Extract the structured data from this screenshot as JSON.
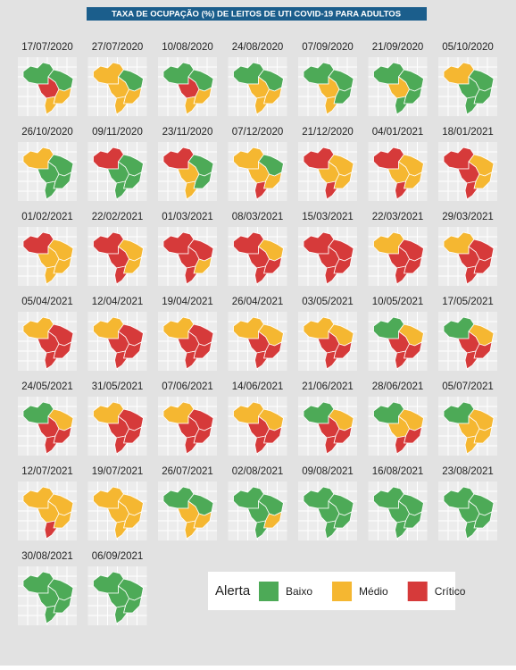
{
  "header": {
    "title": "TAXA DE OCUPAÇÃO (%) DE LEITOS DE UTI COVID-19 PARA ADULTOS"
  },
  "legend": {
    "title": "Alerta",
    "items": [
      {
        "label": "Baixo",
        "color": "#4daa57"
      },
      {
        "label": "Médio",
        "color": "#f5b731"
      },
      {
        "label": "Crítico",
        "color": "#d63a3a"
      }
    ]
  },
  "maps": [
    {
      "date": "17/07/2020",
      "colors": [
        "#4daa57",
        "#4daa57",
        "#d63a3a",
        "#f5b731",
        "#f5b731"
      ]
    },
    {
      "date": "27/07/2020",
      "colors": [
        "#f5b731",
        "#4daa57",
        "#f5b731",
        "#f5b731",
        "#f5b731"
      ]
    },
    {
      "date": "10/08/2020",
      "colors": [
        "#4daa57",
        "#4daa57",
        "#d63a3a",
        "#f5b731",
        "#f5b731"
      ]
    },
    {
      "date": "24/08/2020",
      "colors": [
        "#4daa57",
        "#4daa57",
        "#f5b731",
        "#f5b731",
        "#f5b731"
      ]
    },
    {
      "date": "07/09/2020",
      "colors": [
        "#4daa57",
        "#4daa57",
        "#f5b731",
        "#4daa57",
        "#f5b731"
      ]
    },
    {
      "date": "21/09/2020",
      "colors": [
        "#4daa57",
        "#4daa57",
        "#f5b731",
        "#4daa57",
        "#4daa57"
      ]
    },
    {
      "date": "05/10/2020",
      "colors": [
        "#f5b731",
        "#4daa57",
        "#4daa57",
        "#4daa57",
        "#4daa57"
      ]
    },
    {
      "date": "26/10/2020",
      "colors": [
        "#f5b731",
        "#4daa57",
        "#4daa57",
        "#4daa57",
        "#4daa57"
      ]
    },
    {
      "date": "09/11/2020",
      "colors": [
        "#d63a3a",
        "#4daa57",
        "#4daa57",
        "#4daa57",
        "#4daa57"
      ]
    },
    {
      "date": "23/11/2020",
      "colors": [
        "#d63a3a",
        "#4daa57",
        "#f5b731",
        "#4daa57",
        "#f5b731"
      ]
    },
    {
      "date": "07/12/2020",
      "colors": [
        "#f5b731",
        "#4daa57",
        "#f5b731",
        "#f5b731",
        "#d63a3a"
      ]
    },
    {
      "date": "21/12/2020",
      "colors": [
        "#d63a3a",
        "#f5b731",
        "#f5b731",
        "#f5b731",
        "#d63a3a"
      ]
    },
    {
      "date": "04/01/2021",
      "colors": [
        "#d63a3a",
        "#f5b731",
        "#f5b731",
        "#f5b731",
        "#d63a3a"
      ]
    },
    {
      "date": "18/01/2021",
      "colors": [
        "#d63a3a",
        "#f5b731",
        "#d63a3a",
        "#f5b731",
        "#d63a3a"
      ]
    },
    {
      "date": "01/02/2021",
      "colors": [
        "#d63a3a",
        "#f5b731",
        "#f5b731",
        "#f5b731",
        "#f5b731"
      ]
    },
    {
      "date": "22/02/2021",
      "colors": [
        "#d63a3a",
        "#f5b731",
        "#d63a3a",
        "#f5b731",
        "#d63a3a"
      ]
    },
    {
      "date": "01/03/2021",
      "colors": [
        "#d63a3a",
        "#d63a3a",
        "#d63a3a",
        "#f5b731",
        "#d63a3a"
      ]
    },
    {
      "date": "08/03/2021",
      "colors": [
        "#d63a3a",
        "#f5b731",
        "#d63a3a",
        "#d63a3a",
        "#d63a3a"
      ]
    },
    {
      "date": "15/03/2021",
      "colors": [
        "#d63a3a",
        "#d63a3a",
        "#d63a3a",
        "#d63a3a",
        "#d63a3a"
      ]
    },
    {
      "date": "22/03/2021",
      "colors": [
        "#f5b731",
        "#d63a3a",
        "#d63a3a",
        "#d63a3a",
        "#d63a3a"
      ]
    },
    {
      "date": "29/03/2021",
      "colors": [
        "#f5b731",
        "#d63a3a",
        "#d63a3a",
        "#d63a3a",
        "#d63a3a"
      ]
    },
    {
      "date": "05/04/2021",
      "colors": [
        "#f5b731",
        "#d63a3a",
        "#d63a3a",
        "#d63a3a",
        "#d63a3a"
      ]
    },
    {
      "date": "12/04/2021",
      "colors": [
        "#f5b731",
        "#d63a3a",
        "#d63a3a",
        "#d63a3a",
        "#d63a3a"
      ]
    },
    {
      "date": "19/04/2021",
      "colors": [
        "#f5b731",
        "#d63a3a",
        "#d63a3a",
        "#d63a3a",
        "#d63a3a"
      ]
    },
    {
      "date": "26/04/2021",
      "colors": [
        "#f5b731",
        "#f5b731",
        "#d63a3a",
        "#d63a3a",
        "#d63a3a"
      ]
    },
    {
      "date": "03/05/2021",
      "colors": [
        "#f5b731",
        "#f5b731",
        "#d63a3a",
        "#d63a3a",
        "#d63a3a"
      ]
    },
    {
      "date": "10/05/2021",
      "colors": [
        "#4daa57",
        "#f5b731",
        "#d63a3a",
        "#d63a3a",
        "#d63a3a"
      ]
    },
    {
      "date": "17/05/2021",
      "colors": [
        "#4daa57",
        "#f5b731",
        "#d63a3a",
        "#d63a3a",
        "#d63a3a"
      ]
    },
    {
      "date": "24/05/2021",
      "colors": [
        "#4daa57",
        "#f5b731",
        "#d63a3a",
        "#d63a3a",
        "#d63a3a"
      ]
    },
    {
      "date": "31/05/2021",
      "colors": [
        "#f5b731",
        "#d63a3a",
        "#d63a3a",
        "#d63a3a",
        "#d63a3a"
      ]
    },
    {
      "date": "07/06/2021",
      "colors": [
        "#f5b731",
        "#d63a3a",
        "#d63a3a",
        "#d63a3a",
        "#d63a3a"
      ]
    },
    {
      "date": "14/06/2021",
      "colors": [
        "#f5b731",
        "#f5b731",
        "#d63a3a",
        "#d63a3a",
        "#d63a3a"
      ]
    },
    {
      "date": "21/06/2021",
      "colors": [
        "#4daa57",
        "#f5b731",
        "#d63a3a",
        "#d63a3a",
        "#d63a3a"
      ]
    },
    {
      "date": "28/06/2021",
      "colors": [
        "#4daa57",
        "#f5b731",
        "#f5b731",
        "#d63a3a",
        "#d63a3a"
      ]
    },
    {
      "date": "05/07/2021",
      "colors": [
        "#4daa57",
        "#f5b731",
        "#f5b731",
        "#f5b731",
        "#f5b731"
      ]
    },
    {
      "date": "12/07/2021",
      "colors": [
        "#f5b731",
        "#f5b731",
        "#f5b731",
        "#f5b731",
        "#d63a3a"
      ]
    },
    {
      "date": "19/07/2021",
      "colors": [
        "#f5b731",
        "#f5b731",
        "#f5b731",
        "#f5b731",
        "#f5b731"
      ]
    },
    {
      "date": "26/07/2021",
      "colors": [
        "#4daa57",
        "#4daa57",
        "#f5b731",
        "#f5b731",
        "#f5b731"
      ]
    },
    {
      "date": "02/08/2021",
      "colors": [
        "#4daa57",
        "#4daa57",
        "#4daa57",
        "#f5b731",
        "#4daa57"
      ]
    },
    {
      "date": "09/08/2021",
      "colors": [
        "#4daa57",
        "#4daa57",
        "#4daa57",
        "#4daa57",
        "#4daa57"
      ]
    },
    {
      "date": "16/08/2021",
      "colors": [
        "#4daa57",
        "#4daa57",
        "#4daa57",
        "#4daa57",
        "#4daa57"
      ]
    },
    {
      "date": "23/08/2021",
      "colors": [
        "#4daa57",
        "#4daa57",
        "#4daa57",
        "#4daa57",
        "#4daa57"
      ]
    },
    {
      "date": "30/08/2021",
      "colors": [
        "#4daa57",
        "#4daa57",
        "#4daa57",
        "#4daa57",
        "#4daa57"
      ]
    },
    {
      "date": "06/09/2021",
      "colors": [
        "#4daa57",
        "#4daa57",
        "#4daa57",
        "#4daa57",
        "#4daa57"
      ]
    }
  ]
}
